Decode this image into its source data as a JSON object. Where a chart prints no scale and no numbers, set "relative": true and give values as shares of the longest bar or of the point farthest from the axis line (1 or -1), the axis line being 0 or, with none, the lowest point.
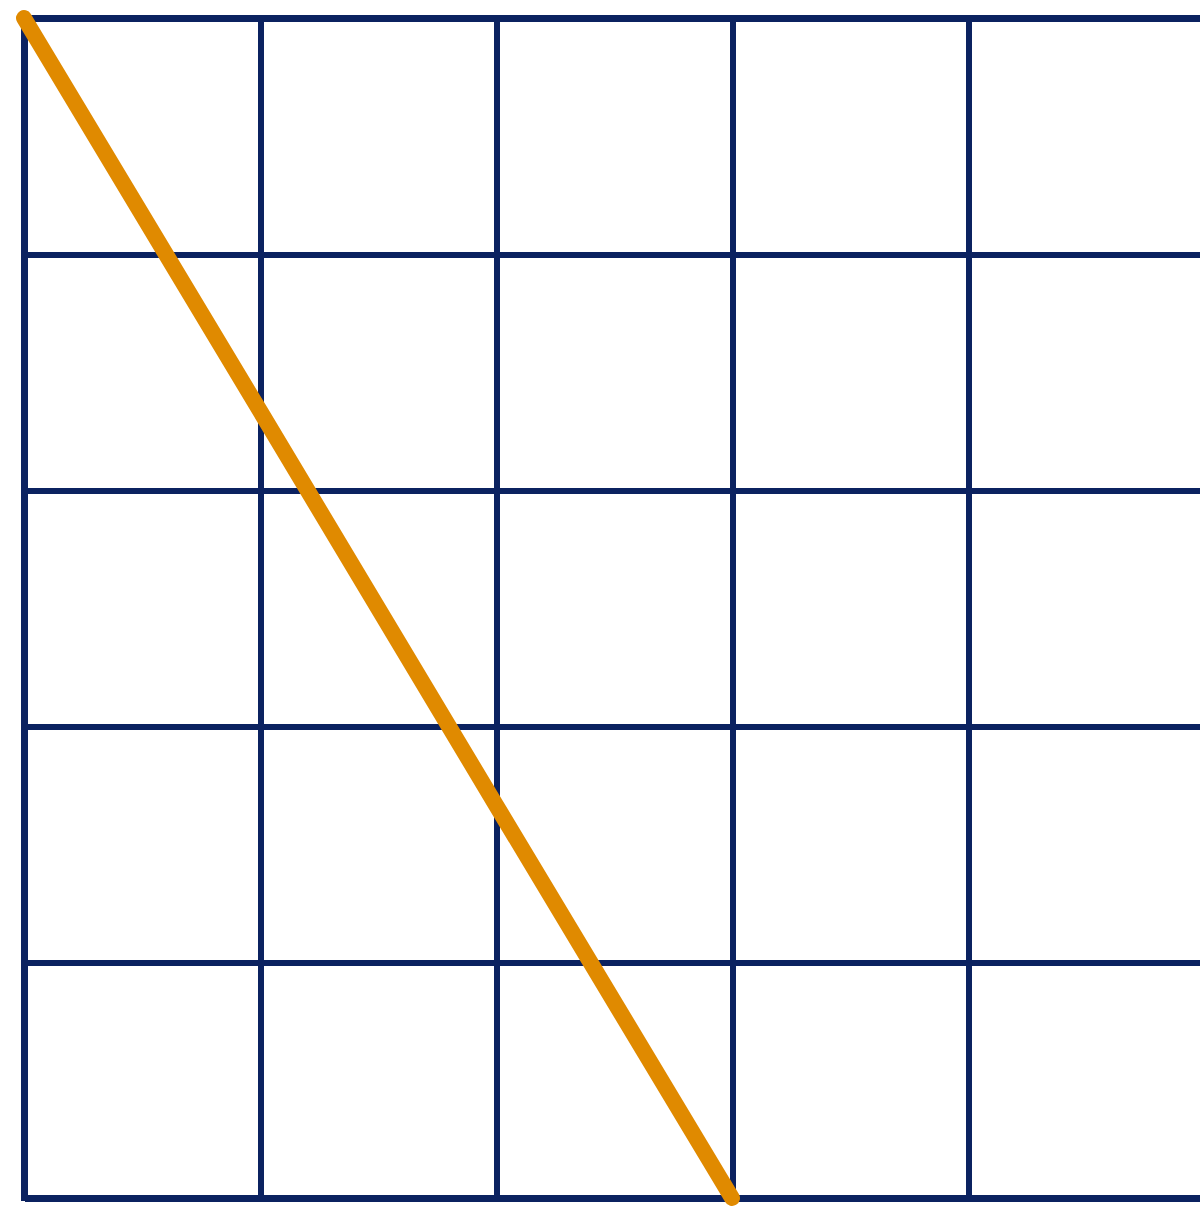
{
  "chart_data": {
    "type": "line",
    "relative": true,
    "grid": true,
    "categories": [
      null,
      null,
      null,
      null,
      null,
      null
    ],
    "series": [
      {
        "color": "#e08a00",
        "values": [
          1,
          0.667,
          0.333,
          0,
          null,
          null
        ]
      }
    ]
  }
}
